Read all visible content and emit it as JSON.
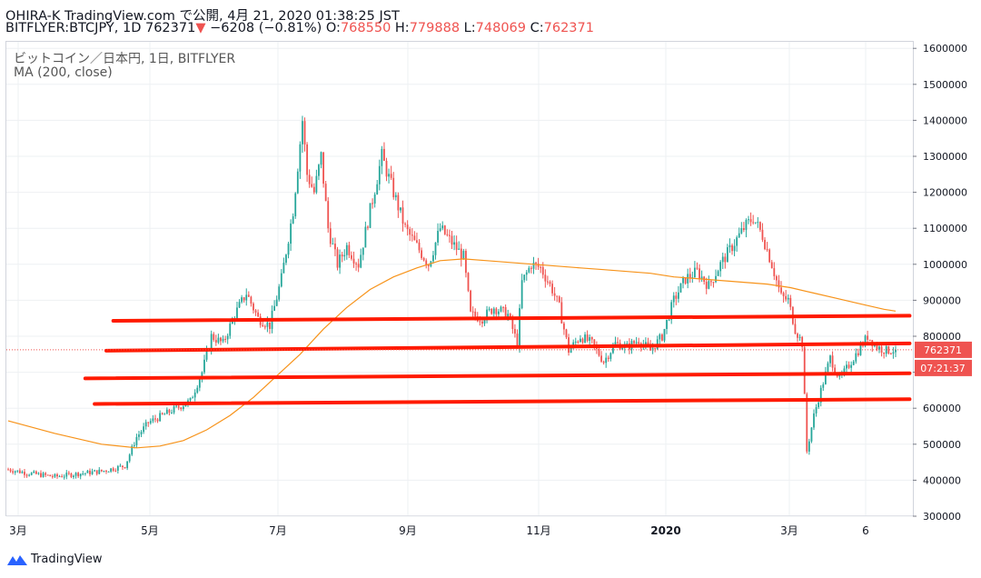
{
  "header": {
    "publisher_line": "OHIRA-K TradingView.com で公開, 4月 21, 2020 01:38:25 JST",
    "symbol": "BITFLYER:BTCJPY, 1D",
    "last": "762371",
    "down_arrow": "▼",
    "change": "−6208 (−0.81%)",
    "o_label": "O:",
    "o_value": "768550",
    "h_label": "H:",
    "h_value": "779888",
    "l_label": "L:",
    "l_value": "748069",
    "c_label": "C:",
    "c_value": "762371"
  },
  "legend": {
    "instrument": "ビットコイン／日本円, 1日, BITFLYER",
    "indicator": "MA (200, close)"
  },
  "price_tag": "762371",
  "countdown_tag": "07:21:37",
  "footer": {
    "brand": "TradingView"
  },
  "colors": {
    "up": "#26a69a",
    "down": "#ef5350",
    "ma": "#f7931a",
    "trendline": "#ff1a00",
    "grid": "#eef0f3"
  },
  "chart_data": {
    "type": "candlestick",
    "y_axis": {
      "min": 300000,
      "max": 1600000,
      "step": 100000,
      "position": "right"
    },
    "x_ticks": [
      "3月",
      "5月",
      "7月",
      "9月",
      "11月",
      "2020",
      "3月",
      "6"
    ],
    "grid": true,
    "close_path": [
      [
        0,
        430000
      ],
      [
        8,
        420000
      ],
      [
        20,
        410000
      ],
      [
        30,
        418000
      ],
      [
        40,
        425000
      ],
      [
        50,
        440000
      ],
      [
        55,
        520000
      ],
      [
        60,
        560000
      ],
      [
        66,
        580000
      ],
      [
        72,
        600000
      ],
      [
        78,
        620000
      ],
      [
        83,
        700000
      ],
      [
        87,
        800000
      ],
      [
        92,
        780000
      ],
      [
        97,
        860000
      ],
      [
        102,
        920000
      ],
      [
        107,
        850000
      ],
      [
        112,
        830000
      ],
      [
        117,
        960000
      ],
      [
        122,
        1150000
      ],
      [
        126,
        1400000
      ],
      [
        128,
        1250000
      ],
      [
        131,
        1200000
      ],
      [
        134,
        1300000
      ],
      [
        137,
        1100000
      ],
      [
        141,
        1000000
      ],
      [
        145,
        1050000
      ],
      [
        150,
        1000000
      ],
      [
        155,
        1150000
      ],
      [
        160,
        1300000
      ],
      [
        165,
        1200000
      ],
      [
        170,
        1100000
      ],
      [
        175,
        1050000
      ],
      [
        180,
        1000000
      ],
      [
        185,
        1100000
      ],
      [
        190,
        1060000
      ],
      [
        195,
        1020000
      ],
      [
        198,
        860000
      ],
      [
        203,
        850000
      ],
      [
        208,
        880000
      ],
      [
        214,
        860000
      ],
      [
        218,
        780000
      ],
      [
        220,
        950000
      ],
      [
        224,
        1000000
      ],
      [
        228,
        990000
      ],
      [
        233,
        930000
      ],
      [
        236,
        880000
      ],
      [
        240,
        760000
      ],
      [
        245,
        800000
      ],
      [
        250,
        780000
      ],
      [
        255,
        730000
      ],
      [
        260,
        780000
      ],
      [
        265,
        770000
      ],
      [
        270,
        790000
      ],
      [
        275,
        760000
      ],
      [
        280,
        800000
      ],
      [
        285,
        900000
      ],
      [
        290,
        960000
      ],
      [
        295,
        980000
      ],
      [
        300,
        940000
      ],
      [
        305,
        1000000
      ],
      [
        310,
        1050000
      ],
      [
        315,
        1100000
      ],
      [
        319,
        1130000
      ],
      [
        323,
        1080000
      ],
      [
        327,
        1000000
      ],
      [
        331,
        910000
      ],
      [
        334,
        900000
      ],
      [
        337,
        820000
      ],
      [
        340,
        780000
      ],
      [
        342,
        480000
      ],
      [
        345,
        580000
      ],
      [
        348,
        650000
      ],
      [
        352,
        740000
      ],
      [
        356,
        680000
      ],
      [
        360,
        720000
      ],
      [
        364,
        760000
      ],
      [
        368,
        800000
      ],
      [
        372,
        770000
      ],
      [
        376,
        760000
      ],
      [
        380,
        762371
      ]
    ],
    "ma_200": [
      [
        0,
        565000
      ],
      [
        20,
        530000
      ],
      [
        40,
        500000
      ],
      [
        55,
        490000
      ],
      [
        65,
        495000
      ],
      [
        75,
        510000
      ],
      [
        85,
        540000
      ],
      [
        95,
        580000
      ],
      [
        105,
        630000
      ],
      [
        115,
        690000
      ],
      [
        125,
        750000
      ],
      [
        135,
        820000
      ],
      [
        145,
        880000
      ],
      [
        155,
        930000
      ],
      [
        165,
        965000
      ],
      [
        175,
        990000
      ],
      [
        185,
        1010000
      ],
      [
        195,
        1015000
      ],
      [
        205,
        1010000
      ],
      [
        215,
        1005000
      ],
      [
        225,
        1000000
      ],
      [
        235,
        995000
      ],
      [
        245,
        990000
      ],
      [
        255,
        985000
      ],
      [
        265,
        980000
      ],
      [
        275,
        975000
      ],
      [
        285,
        965000
      ],
      [
        295,
        960000
      ],
      [
        305,
        955000
      ],
      [
        315,
        950000
      ],
      [
        325,
        945000
      ],
      [
        335,
        935000
      ],
      [
        345,
        920000
      ],
      [
        355,
        905000
      ],
      [
        365,
        890000
      ],
      [
        375,
        875000
      ],
      [
        380,
        870000
      ]
    ],
    "trendlines": [
      {
        "from": [
          45,
          843000
        ],
        "to": [
          386,
          857000
        ]
      },
      {
        "from": [
          42,
          760000
        ],
        "to": [
          386,
          780000
        ]
      },
      {
        "from": [
          33,
          683000
        ],
        "to": [
          386,
          697000
        ]
      },
      {
        "from": [
          37,
          612000
        ],
        "to": [
          386,
          625000
        ]
      }
    ],
    "last_price": 762371
  }
}
